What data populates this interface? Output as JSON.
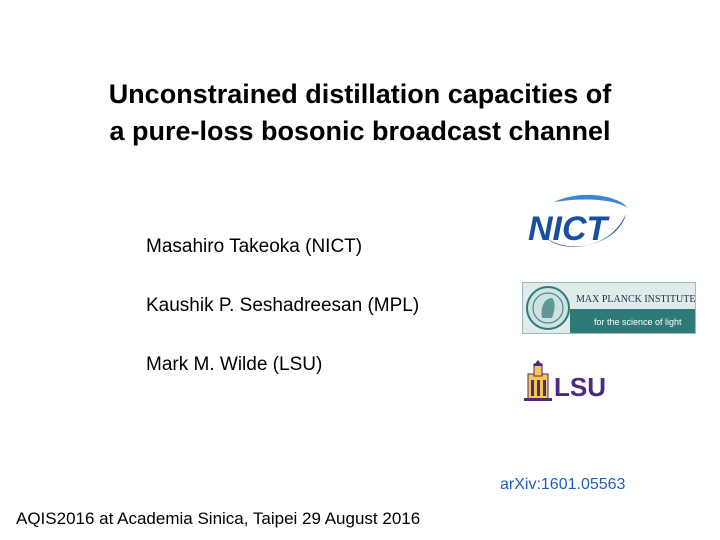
{
  "slide": {
    "title_line1": "Unconstrained distillation capacities of",
    "title_line2": "a pure-loss bosonic broadcast channel",
    "authors": [
      "Masahiro Takeoka (NICT)",
      "Kaushik P. Seshadreesan (MPL)",
      "Mark M. Wilde (LSU)"
    ],
    "logos": {
      "nict": {
        "icon": "nict-logo",
        "text": "NICT",
        "color": "#1a4fa0"
      },
      "mpl": {
        "icon": "max-planck-logo",
        "text_line1": "MAX PLANCK INSTITUTE",
        "text_line2": "for the science of light",
        "color": "#2e7a78"
      },
      "lsu": {
        "icon": "lsu-logo",
        "text": "LSU",
        "color": "#4b2a82"
      }
    },
    "arxiv": "arXiv:1601.05563",
    "footer": "AQIS2016 at Academia Sinica, Taipei 29 August 2016"
  }
}
